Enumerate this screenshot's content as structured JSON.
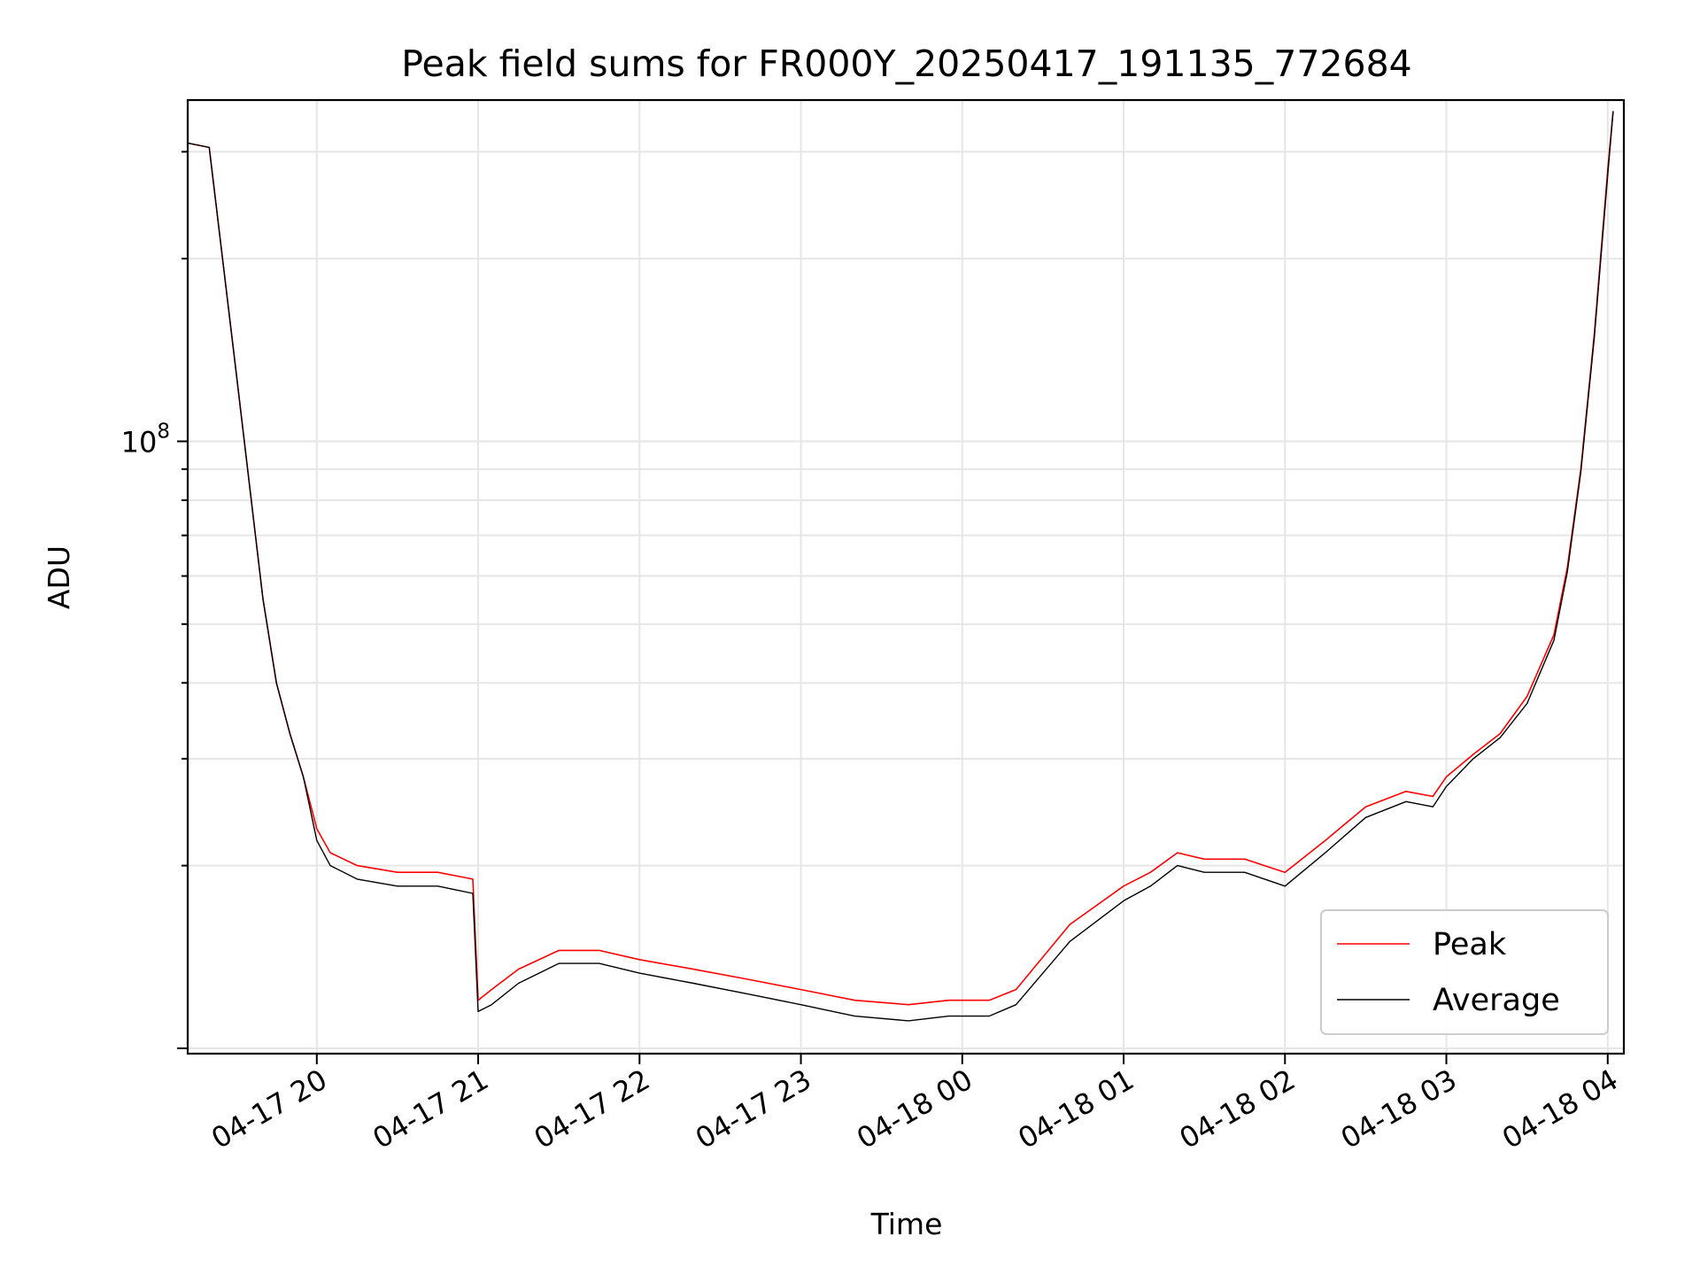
{
  "chart_data": {
    "type": "line",
    "title": "Peak field sums for FR000Y_20250417_191135_772684",
    "xlabel": "Time",
    "ylabel": "ADU",
    "x_ticks": [
      "04-17 20",
      "04-17 21",
      "04-17 22",
      "04-17 23",
      "04-18 00",
      "04-18 01",
      "04-18 02",
      "04-18 03",
      "04-18 04"
    ],
    "x_tick_times": [
      "2025-04-17 20:00",
      "2025-04-17 21:00",
      "2025-04-17 22:00",
      "2025-04-17 23:00",
      "2025-04-18 00:00",
      "2025-04-18 01:00",
      "2025-04-18 02:00",
      "2025-04-18 03:00",
      "2025-04-18 04:00"
    ],
    "y_scale": "log",
    "y_tick_label_html": "10<tspan dy=\"-16\" font-size=\"23\">8</tspan>",
    "y_tick_value": 100000000,
    "xlim": [
      "2025-04-17 19:12",
      "2025-04-18 04:06"
    ],
    "ylim": [
      9800000,
      365000000
    ],
    "grid": true,
    "legend_position": "lower-right",
    "series": [
      {
        "name": "Peak",
        "color": "#ff0000",
        "x": [
          "2025-04-17 19:12",
          "2025-04-17 19:20",
          "2025-04-17 19:30",
          "2025-04-17 19:40",
          "2025-04-17 19:45",
          "2025-04-17 19:50",
          "2025-04-17 19:55",
          "2025-04-17 20:00",
          "2025-04-17 20:05",
          "2025-04-17 20:15",
          "2025-04-17 20:30",
          "2025-04-17 20:45",
          "2025-04-17 20:58",
          "2025-04-17 21:00",
          "2025-04-17 21:05",
          "2025-04-17 21:15",
          "2025-04-17 21:30",
          "2025-04-17 21:45",
          "2025-04-17 22:00",
          "2025-04-17 22:20",
          "2025-04-17 22:40",
          "2025-04-17 23:00",
          "2025-04-17 23:20",
          "2025-04-17 23:40",
          "2025-04-17 23:55",
          "2025-04-18 00:10",
          "2025-04-18 00:20",
          "2025-04-18 00:40",
          "2025-04-18 01:00",
          "2025-04-18 01:10",
          "2025-04-18 01:20",
          "2025-04-18 01:30",
          "2025-04-18 01:45",
          "2025-04-18 02:00",
          "2025-04-18 02:15",
          "2025-04-18 02:30",
          "2025-04-18 02:45",
          "2025-04-18 02:55",
          "2025-04-18 03:00",
          "2025-04-18 03:10",
          "2025-04-18 03:20",
          "2025-04-18 03:30",
          "2025-04-18 03:40",
          "2025-04-18 03:45",
          "2025-04-18 03:50",
          "2025-04-18 03:55",
          "2025-04-18 04:00",
          "2025-04-18 04:02"
        ],
        "y": [
          310000000,
          305000000,
          130000000,
          55000000,
          40000000,
          33000000,
          28000000,
          23000000,
          21000000,
          20000000,
          19500000,
          19500000,
          19000000,
          12000000,
          12500000,
          13500000,
          14500000,
          14500000,
          14000000,
          13500000,
          13000000,
          12500000,
          12000000,
          11800000,
          12000000,
          12000000,
          12500000,
          16000000,
          18500000,
          19500000,
          21000000,
          20500000,
          20500000,
          19500000,
          22000000,
          25000000,
          26500000,
          26000000,
          28000000,
          30500000,
          33000000,
          38000000,
          48000000,
          62000000,
          90000000,
          150000000,
          280000000,
          350000000
        ]
      },
      {
        "name": "Average",
        "color": "#000000",
        "x": [
          "2025-04-17 19:12",
          "2025-04-17 19:20",
          "2025-04-17 19:30",
          "2025-04-17 19:40",
          "2025-04-17 19:45",
          "2025-04-17 19:50",
          "2025-04-17 19:55",
          "2025-04-17 20:00",
          "2025-04-17 20:05",
          "2025-04-17 20:15",
          "2025-04-17 20:30",
          "2025-04-17 20:45",
          "2025-04-17 20:58",
          "2025-04-17 21:00",
          "2025-04-17 21:05",
          "2025-04-17 21:15",
          "2025-04-17 21:30",
          "2025-04-17 21:45",
          "2025-04-17 22:00",
          "2025-04-17 22:20",
          "2025-04-17 22:40",
          "2025-04-17 23:00",
          "2025-04-17 23:20",
          "2025-04-17 23:40",
          "2025-04-17 23:55",
          "2025-04-18 00:10",
          "2025-04-18 00:20",
          "2025-04-18 00:40",
          "2025-04-18 01:00",
          "2025-04-18 01:10",
          "2025-04-18 01:20",
          "2025-04-18 01:30",
          "2025-04-18 01:45",
          "2025-04-18 02:00",
          "2025-04-18 02:15",
          "2025-04-18 02:30",
          "2025-04-18 02:45",
          "2025-04-18 02:55",
          "2025-04-18 03:00",
          "2025-04-18 03:10",
          "2025-04-18 03:20",
          "2025-04-18 03:30",
          "2025-04-18 03:40",
          "2025-04-18 03:45",
          "2025-04-18 03:50",
          "2025-04-18 03:55",
          "2025-04-18 04:00",
          "2025-04-18 04:02"
        ],
        "y": [
          310000000,
          305000000,
          130000000,
          55000000,
          40000000,
          33000000,
          28000000,
          22000000,
          20000000,
          19000000,
          18500000,
          18500000,
          18000000,
          11500000,
          11800000,
          12800000,
          13800000,
          13800000,
          13300000,
          12800000,
          12300000,
          11800000,
          11300000,
          11100000,
          11300000,
          11300000,
          11800000,
          15000000,
          17500000,
          18500000,
          20000000,
          19500000,
          19500000,
          18500000,
          21000000,
          24000000,
          25500000,
          25000000,
          27000000,
          30000000,
          32500000,
          37000000,
          47000000,
          61000000,
          89000000,
          148000000,
          275000000,
          350000000
        ]
      }
    ]
  }
}
